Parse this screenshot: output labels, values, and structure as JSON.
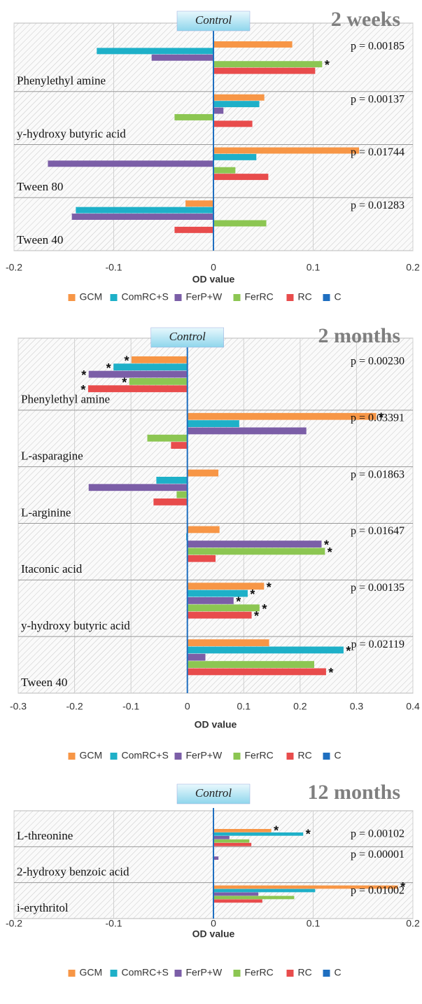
{
  "chart_data": [
    {
      "type": "bar",
      "orientation": "horizontal",
      "title": "2 weeks",
      "control_label": "Control",
      "xlabel": "OD value",
      "categories": [
        "Phenylethyl  amine",
        "y-hydroxy  butyric acid",
        "Tween 80",
        "Tween 40"
      ],
      "p_values": [
        "p = 0.00185",
        "p = 0.00137",
        "p = 0.01744",
        "p = 0.01283"
      ],
      "series": [
        {
          "name": "GCM",
          "color": "#f79646",
          "values": [
            0.079,
            0.051,
            0.146,
            -0.028
          ],
          "significance": [
            null,
            null,
            null,
            null
          ]
        },
        {
          "name": "ComRC+S",
          "color": "#1eb0c8",
          "values": [
            -0.117,
            0.046,
            0.043,
            -0.138
          ],
          "significance": [
            null,
            null,
            null,
            null
          ]
        },
        {
          "name": "FerP+W",
          "color": "#7b5ea7",
          "values": [
            -0.062,
            0.01,
            -0.166,
            -0.142
          ],
          "significance": [
            null,
            null,
            null,
            null
          ]
        },
        {
          "name": "FerRC",
          "color": "#8cc652",
          "values": [
            0.109,
            -0.039,
            0.022,
            0.053
          ],
          "significance": [
            "*",
            null,
            null,
            null
          ]
        },
        {
          "name": "RC",
          "color": "#e84c4c",
          "values": [
            0.102,
            0.039,
            0.055,
            -0.039
          ],
          "significance": [
            null,
            null,
            null,
            null
          ]
        },
        {
          "name": "C",
          "color": "#1f6fc0",
          "values": [
            0,
            0,
            0,
            0
          ],
          "significance": [
            null,
            null,
            null,
            null
          ]
        }
      ],
      "xlim": [
        -0.2,
        0.2
      ],
      "xticks": [
        -0.2,
        -0.1,
        0,
        0.1,
        0.2
      ],
      "grid": true
    },
    {
      "type": "bar",
      "orientation": "horizontal",
      "title": "2 months",
      "control_label": "Control",
      "xlabel": "OD value",
      "categories": [
        "Phenylethyl  amine",
        "L-asparagine",
        "L-arginine",
        "Itaconic acid",
        "y-hydroxy  butyric acid",
        "Tween 40"
      ],
      "p_values": [
        "p = 0.00230",
        "p = 0.03391",
        "p = 0.01863",
        "p = 0.01647",
        "p = 0.00135",
        "p = 0.02119"
      ],
      "series": [
        {
          "name": "GCM",
          "color": "#f79646",
          "values": [
            -0.099,
            0.335,
            0.055,
            0.057,
            0.136,
            0.145
          ],
          "significance": [
            "*",
            "*",
            null,
            null,
            "*",
            null
          ]
        },
        {
          "name": "ComRC+S",
          "color": "#1eb0c8",
          "values": [
            -0.131,
            0.092,
            -0.055,
            -0.002,
            0.107,
            0.277
          ],
          "significance": [
            "*",
            null,
            null,
            null,
            "*",
            "*"
          ]
        },
        {
          "name": "FerP+W",
          "color": "#7b5ea7",
          "values": [
            -0.175,
            0.211,
            -0.175,
            0.238,
            0.082,
            0.032
          ],
          "significance": [
            "*",
            null,
            null,
            "*",
            "*",
            null
          ]
        },
        {
          "name": "FerRC",
          "color": "#8cc652",
          "values": [
            -0.103,
            -0.071,
            -0.019,
            0.244,
            0.128,
            0.225
          ],
          "significance": [
            "*",
            null,
            null,
            "*",
            "*",
            null
          ]
        },
        {
          "name": "RC",
          "color": "#e84c4c",
          "values": [
            -0.176,
            -0.029,
            -0.06,
            0.05,
            0.114,
            0.246
          ],
          "significance": [
            "*",
            null,
            null,
            null,
            "*",
            "*"
          ]
        },
        {
          "name": "C",
          "color": "#1f6fc0",
          "values": [
            0,
            0,
            0,
            0,
            0,
            0
          ],
          "significance": [
            null,
            null,
            null,
            null,
            null,
            null
          ]
        }
      ],
      "xlim": [
        -0.3,
        0.4
      ],
      "xticks": [
        -0.3,
        -0.2,
        -0.1,
        0,
        0.1,
        0.2,
        0.3,
        0.4
      ],
      "grid": true
    },
    {
      "type": "bar",
      "orientation": "horizontal",
      "title": "12 months",
      "control_label": "Control",
      "xlabel": "OD value",
      "categories": [
        "L-threonine",
        "2-hydroxy  benzoic acid",
        "i-erythritol"
      ],
      "p_values": [
        "p = 0.00102",
        "p = 0.00001",
        "p = 0.01002"
      ],
      "series": [
        {
          "name": "GCM",
          "color": "#f79646",
          "values": [
            0.058,
            0,
            0.185
          ],
          "significance": [
            "*",
            null,
            "*"
          ]
        },
        {
          "name": "ComRC+S",
          "color": "#1eb0c8",
          "values": [
            0.09,
            0,
            0.102
          ],
          "significance": [
            "*",
            null,
            null
          ]
        },
        {
          "name": "FerP+W",
          "color": "#7b5ea7",
          "values": [
            0.016,
            0.005,
            0.045
          ],
          "significance": [
            null,
            null,
            null
          ]
        },
        {
          "name": "FerRC",
          "color": "#8cc652",
          "values": [
            0.036,
            0,
            0.081
          ],
          "significance": [
            null,
            null,
            null
          ]
        },
        {
          "name": "RC",
          "color": "#e84c4c",
          "values": [
            0.038,
            0,
            0.049
          ],
          "significance": [
            null,
            null,
            null
          ]
        },
        {
          "name": "C",
          "color": "#1f6fc0",
          "values": [
            0,
            0,
            0
          ],
          "significance": [
            null,
            null,
            null
          ]
        }
      ],
      "xlim": [
        -0.2,
        0.2
      ],
      "xticks": [
        -0.2,
        -0.1,
        0,
        0.1,
        0.2
      ],
      "grid": true
    }
  ]
}
